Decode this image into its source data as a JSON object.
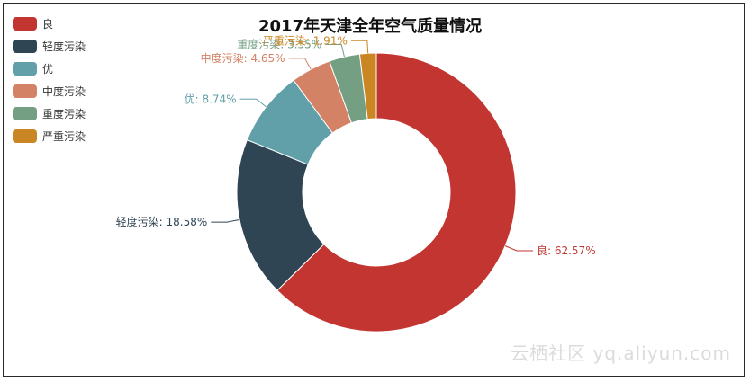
{
  "chart_data": {
    "type": "pie",
    "subtype": "donut",
    "title": "2017年天津全年空气质量情况",
    "series": [
      {
        "name": "良",
        "value": 62.57,
        "label": "良: 62.57%",
        "color": "#c23531"
      },
      {
        "name": "轻度污染",
        "value": 18.58,
        "label": "轻度污染: 18.58%",
        "color": "#2f4554"
      },
      {
        "name": "优",
        "value": 8.74,
        "label": "优: 8.74%",
        "color": "#61a0a8"
      },
      {
        "name": "中度污染",
        "value": 4.65,
        "label": "中度污染: 4.65%",
        "color": "#d48265"
      },
      {
        "name": "重度污染",
        "value": 3.55,
        "label": "重度污染: 3.55%",
        "color": "#749f83"
      },
      {
        "name": "严重污染",
        "value": 1.91,
        "label": "严重污染: 1.91%",
        "color": "#ca8622"
      }
    ],
    "legend_placement": "top-left"
  },
  "watermark": "云栖社区 yq.aliyun.com"
}
